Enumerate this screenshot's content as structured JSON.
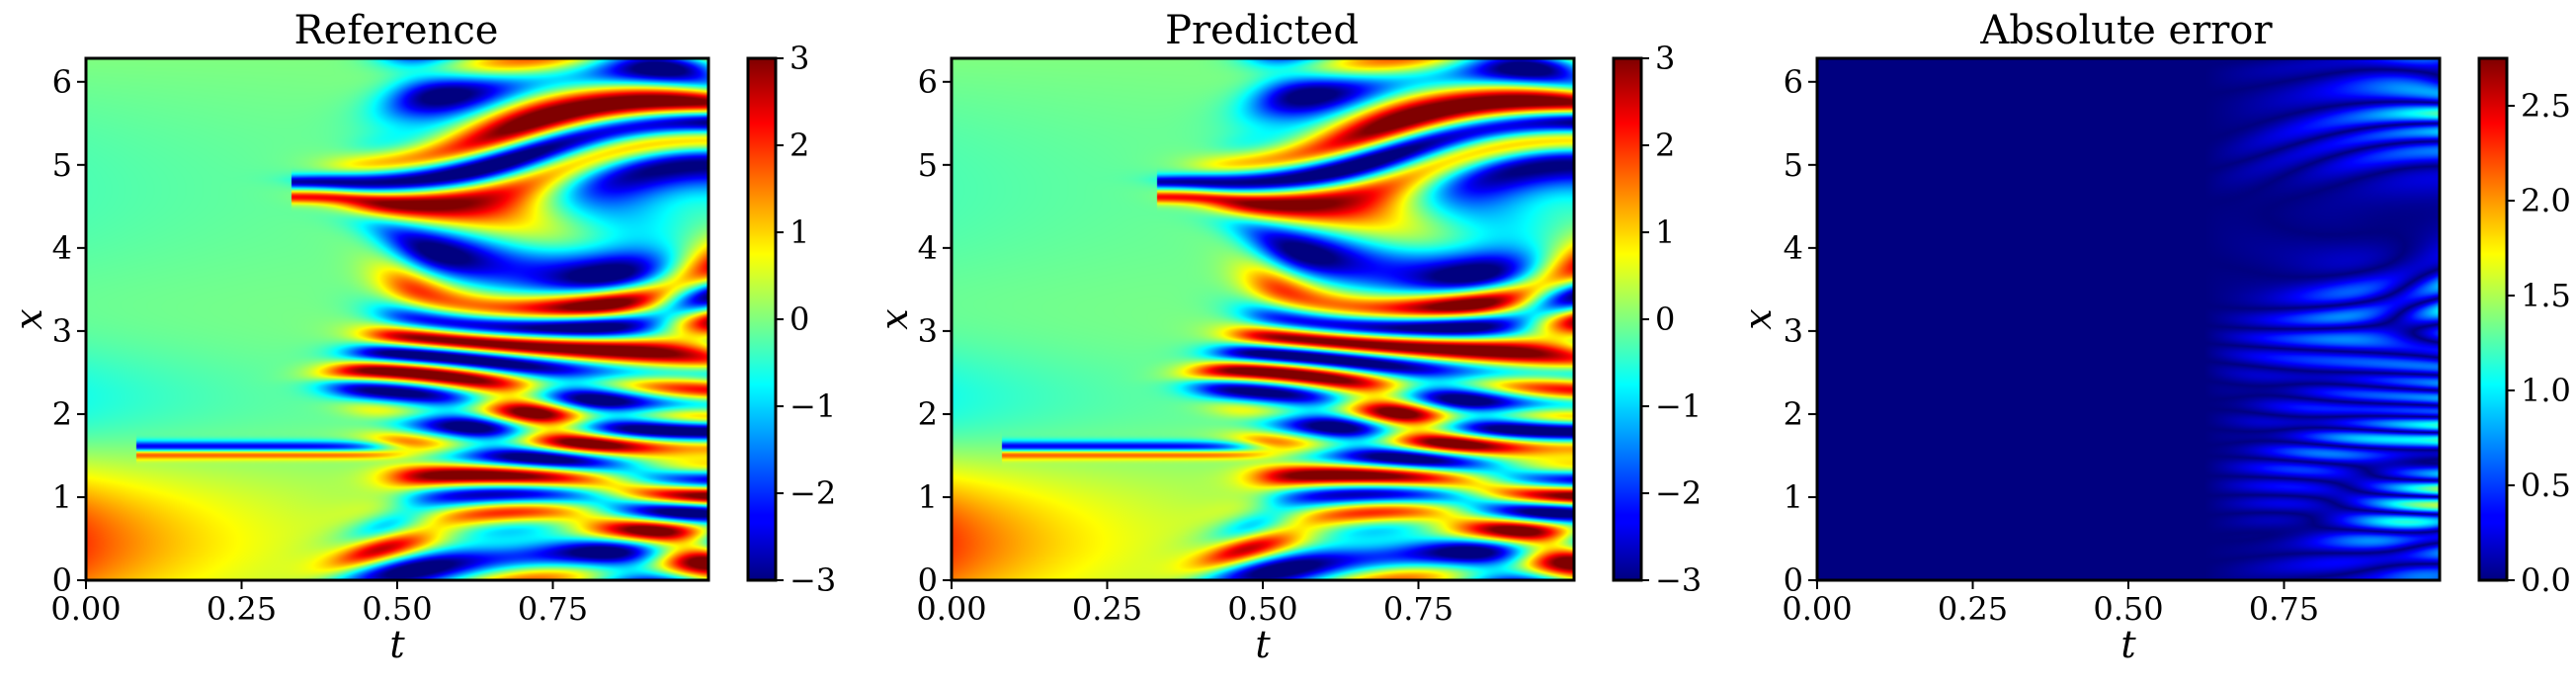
{
  "colormap": "jet",
  "chart_data": [
    {
      "type": "heatmap",
      "title": "Reference",
      "xlabel": "t",
      "ylabel": "x",
      "xlim": [
        0,
        1
      ],
      "ylim": [
        0,
        6.283
      ],
      "xticks": [
        "0.00",
        "0.25",
        "0.50",
        "0.75"
      ],
      "yticks": [
        "0",
        "1",
        "2",
        "3",
        "4",
        "5",
        "6"
      ],
      "colorbar": {
        "range": [
          -3,
          3
        ],
        "ticks": [
          "−3",
          "−2",
          "−1",
          "0",
          "1",
          "2",
          "3"
        ]
      },
      "values_description_range": [
        -3,
        3
      ]
    },
    {
      "type": "heatmap",
      "title": "Predicted",
      "xlabel": "t",
      "ylabel": "x",
      "xlim": [
        0,
        1
      ],
      "ylim": [
        0,
        6.283
      ],
      "xticks": [
        "0.00",
        "0.25",
        "0.50",
        "0.75"
      ],
      "yticks": [
        "0",
        "1",
        "2",
        "3",
        "4",
        "5",
        "6"
      ],
      "colorbar": {
        "range": [
          -3,
          3
        ],
        "ticks": [
          "−3",
          "−2",
          "−1",
          "0",
          "1",
          "2",
          "3"
        ]
      },
      "values_description_range": [
        -3,
        3
      ]
    },
    {
      "type": "heatmap",
      "title": "Absolute error",
      "xlabel": "t",
      "ylabel": "x",
      "xlim": [
        0,
        1
      ],
      "ylim": [
        0,
        6.283
      ],
      "xticks": [
        "0.00",
        "0.25",
        "0.50",
        "0.75"
      ],
      "yticks": [
        "0",
        "1",
        "2",
        "3",
        "4",
        "5",
        "6"
      ],
      "colorbar": {
        "range": [
          0,
          2.75
        ],
        "ticks": [
          "0.0",
          "0.5",
          "1.0",
          "1.5",
          "2.0",
          "2.5"
        ]
      },
      "values_description_range": [
        0,
        2.75
      ]
    }
  ]
}
